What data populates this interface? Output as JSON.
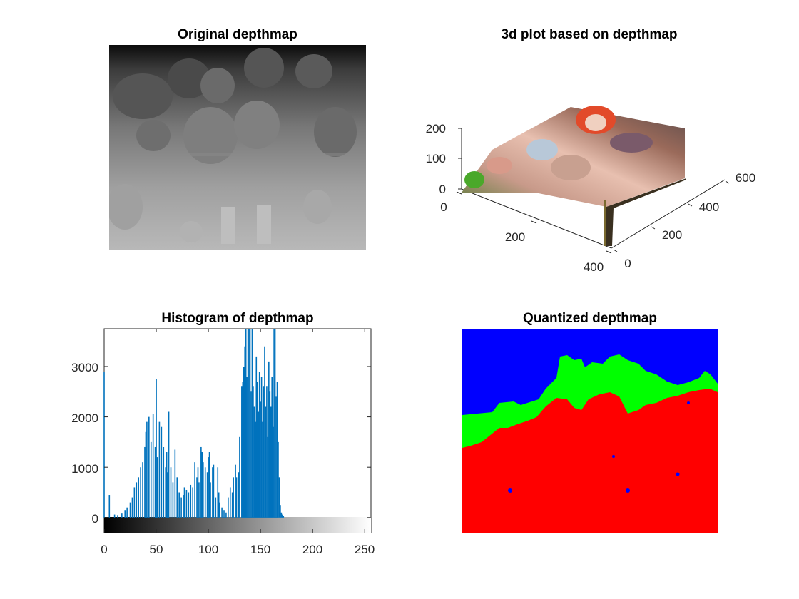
{
  "chart_data": [
    {
      "type": "image",
      "title": "Original depthmap"
    },
    {
      "type": "surface",
      "title": "3d plot based on depthmap",
      "x_ticks": [
        "0",
        "200",
        "400"
      ],
      "y_ticks": [
        "0",
        "200",
        "400",
        "600"
      ],
      "z_ticks": [
        "0",
        "100",
        "200"
      ],
      "xlim": [
        0,
        400
      ],
      "ylim": [
        0,
        600
      ],
      "zlim": [
        0,
        200
      ]
    },
    {
      "type": "bar",
      "title": "Histogram of depthmap",
      "xlim": [
        0,
        256
      ],
      "ylim": [
        -300,
        3750
      ],
      "x_ticks": [
        "0",
        "50",
        "100",
        "150",
        "200",
        "250"
      ],
      "y_ticks": [
        "0",
        "1000",
        "2000",
        "3000"
      ],
      "colorbar": "gray",
      "bar_color": "#0072bd",
      "bins": [
        [
          0,
          2900
        ],
        [
          5,
          450
        ],
        [
          10,
          60
        ],
        [
          13,
          50
        ],
        [
          17,
          80
        ],
        [
          20,
          150
        ],
        [
          22,
          200
        ],
        [
          25,
          300
        ],
        [
          27,
          400
        ],
        [
          29,
          600
        ],
        [
          31,
          700
        ],
        [
          33,
          800
        ],
        [
          35,
          1000
        ],
        [
          37,
          1100
        ],
        [
          39,
          1400
        ],
        [
          40,
          1700
        ],
        [
          41,
          1900
        ],
        [
          43,
          2000
        ],
        [
          45,
          1500
        ],
        [
          47,
          2050
        ],
        [
          49,
          1400
        ],
        [
          50,
          2750
        ],
        [
          51,
          1200
        ],
        [
          53,
          1900
        ],
        [
          55,
          1800
        ],
        [
          57,
          1400
        ],
        [
          59,
          1000
        ],
        [
          60,
          1300
        ],
        [
          61,
          900
        ],
        [
          62,
          2100
        ],
        [
          64,
          1000
        ],
        [
          66,
          700
        ],
        [
          68,
          1350
        ],
        [
          70,
          800
        ],
        [
          72,
          500
        ],
        [
          74,
          400
        ],
        [
          76,
          450
        ],
        [
          77,
          600
        ],
        [
          79,
          550
        ],
        [
          81,
          500
        ],
        [
          83,
          650
        ],
        [
          85,
          600
        ],
        [
          87,
          1100
        ],
        [
          89,
          800
        ],
        [
          90,
          1000
        ],
        [
          91,
          700
        ],
        [
          93,
          1400
        ],
        [
          94,
          1300
        ],
        [
          95,
          1100
        ],
        [
          97,
          1000
        ],
        [
          99,
          900
        ],
        [
          100,
          1200
        ],
        [
          101,
          1300
        ],
        [
          102,
          700
        ],
        [
          104,
          1000
        ],
        [
          105,
          1050
        ],
        [
          107,
          400
        ],
        [
          109,
          1000
        ],
        [
          110,
          500
        ],
        [
          111,
          300
        ],
        [
          113,
          200
        ],
        [
          115,
          150
        ],
        [
          117,
          100
        ],
        [
          119,
          400
        ],
        [
          121,
          600
        ],
        [
          123,
          500
        ],
        [
          124,
          800
        ],
        [
          126,
          1050
        ],
        [
          127,
          800
        ],
        [
          129,
          900
        ],
        [
          130,
          1600
        ],
        [
          132,
          2600
        ],
        [
          133,
          2700
        ],
        [
          134,
          3000
        ],
        [
          135,
          3400
        ],
        [
          136,
          3750
        ],
        [
          137,
          2800
        ],
        [
          138,
          3750
        ],
        [
          139,
          3750
        ],
        [
          140,
          3750
        ],
        [
          141,
          2500
        ],
        [
          142,
          3750
        ],
        [
          143,
          2600
        ],
        [
          144,
          2200
        ],
        [
          145,
          1900
        ],
        [
          146,
          3200
        ],
        [
          147,
          2700
        ],
        [
          148,
          2100
        ],
        [
          149,
          2900
        ],
        [
          150,
          2300
        ],
        [
          151,
          2800
        ],
        [
          152,
          1900
        ],
        [
          153,
          2600
        ],
        [
          154,
          3400
        ],
        [
          155,
          2200
        ],
        [
          156,
          2600
        ],
        [
          157,
          1600
        ],
        [
          158,
          3100
        ],
        [
          159,
          2500
        ],
        [
          160,
          2200
        ],
        [
          161,
          2800
        ],
        [
          162,
          1800
        ],
        [
          163,
          3750
        ],
        [
          164,
          3750
        ],
        [
          165,
          2400
        ],
        [
          166,
          2700
        ],
        [
          167,
          1500
        ],
        [
          168,
          800
        ],
        [
          169,
          250
        ],
        [
          170,
          100
        ],
        [
          171,
          60
        ],
        [
          172,
          40
        ]
      ]
    },
    {
      "type": "image",
      "title": "Quantized depthmap",
      "colors": {
        "far": "#0000ff",
        "mid": "#00ff00",
        "near": "#ff0000"
      }
    }
  ]
}
